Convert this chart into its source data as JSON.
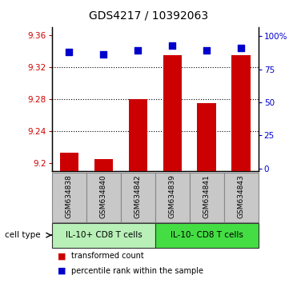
{
  "title": "GDS4217 / 10392063",
  "samples": [
    "GSM634838",
    "GSM634840",
    "GSM634842",
    "GSM634839",
    "GSM634841",
    "GSM634843"
  ],
  "red_values": [
    9.213,
    9.205,
    9.28,
    9.335,
    9.275,
    9.335
  ],
  "blue_values": [
    88,
    86,
    89,
    93,
    89,
    91
  ],
  "ylim_left": [
    9.19,
    9.37
  ],
  "ylim_right": [
    -2,
    107
  ],
  "yticks_left": [
    9.2,
    9.24,
    9.28,
    9.32,
    9.36
  ],
  "yticks_right": [
    0,
    25,
    50,
    75,
    100
  ],
  "ytick_labels_left": [
    "9.2",
    "9.24",
    "9.28",
    "9.32",
    "9.36"
  ],
  "ytick_labels_right": [
    "0",
    "25",
    "50",
    "75",
    "100%"
  ],
  "groups": [
    {
      "label": "IL-10+ CD8 T cells",
      "indices": [
        0,
        1,
        2
      ],
      "color": "#b8f0b8"
    },
    {
      "label": "IL-10- CD8 T cells",
      "indices": [
        3,
        4,
        5
      ],
      "color": "#44dd44"
    }
  ],
  "group_label": "cell type",
  "bar_color": "#cc0000",
  "dot_color": "#0000cc",
  "bar_base": 9.19,
  "bar_width": 0.55,
  "dot_size": 28,
  "tick_label_color_left": "#cc0000",
  "tick_label_color_right": "#0000cc",
  "legend_items": [
    {
      "color": "#cc0000",
      "label": "transformed count"
    },
    {
      "color": "#0000cc",
      "label": "percentile rank within the sample"
    }
  ],
  "gridlines": [
    9.24,
    9.28,
    9.32
  ],
  "sample_box_color": "#c8c8c8",
  "sample_box_edge": "#888888"
}
